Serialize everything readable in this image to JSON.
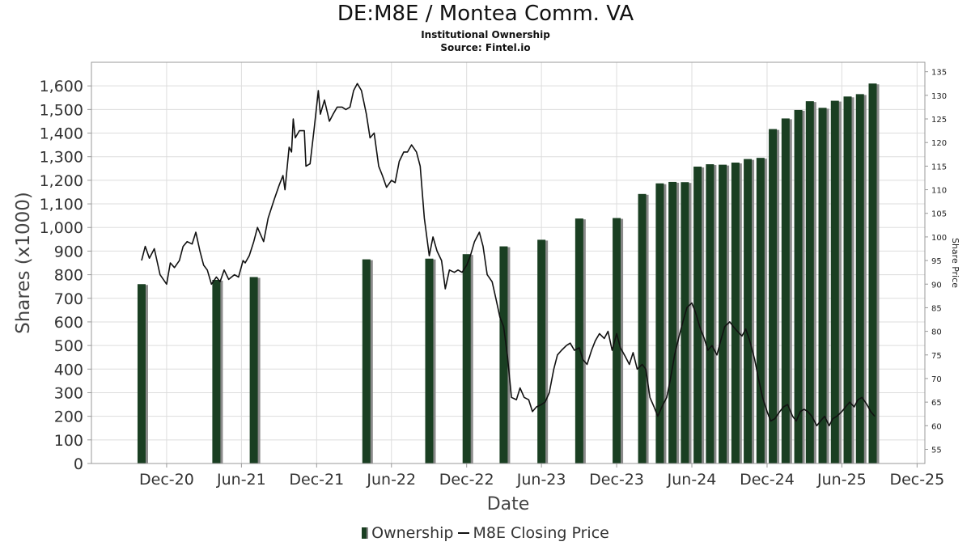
{
  "header": {
    "title": "DE:M8E / Montea Comm. VA",
    "subtitle": "Institutional Ownership",
    "source": "Source: Fintel.io"
  },
  "legend": {
    "ownership_label": "Ownership",
    "price_label": "M8E Closing Price"
  },
  "colors": {
    "bar": "#1a3f22",
    "bar_shadow": "#8a8a8a",
    "line": "#111111",
    "grid": "#dddddd"
  },
  "chart_data": {
    "type": "bar",
    "xlabel": "Date",
    "ylabel": "Shares (x1000)",
    "y2label": "Share Price",
    "ylim": [
      0,
      1700
    ],
    "y2lim": [
      52,
      137
    ],
    "y_ticks": [
      "0",
      "100",
      "200",
      "300",
      "400",
      "500",
      "600",
      "700",
      "800",
      "900",
      "1,000",
      "1,100",
      "1,200",
      "1,300",
      "1,400",
      "1,500",
      "1,600"
    ],
    "y2_ticks": [
      "55",
      "60",
      "65",
      "70",
      "75",
      "80",
      "85",
      "90",
      "95",
      "100",
      "105",
      "110",
      "115",
      "120",
      "125",
      "130",
      "135"
    ],
    "x_ticks": [
      {
        "label": "Dec-20",
        "date": "2020-12-01"
      },
      {
        "label": "Jun-21",
        "date": "2021-06-01"
      },
      {
        "label": "Dec-21",
        "date": "2021-12-01"
      },
      {
        "label": "Jun-22",
        "date": "2022-06-01"
      },
      {
        "label": "Dec-22",
        "date": "2022-12-01"
      },
      {
        "label": "Jun-23",
        "date": "2023-06-01"
      },
      {
        "label": "Dec-23",
        "date": "2023-12-01"
      },
      {
        "label": "Jun-24",
        "date": "2024-06-01"
      },
      {
        "label": "Dec-24",
        "date": "2024-12-01"
      },
      {
        "label": "Jun-25",
        "date": "2025-06-01"
      },
      {
        "label": "Dec-25",
        "date": "2025-12-01"
      }
    ],
    "grid": true,
    "legend_position": "bottom",
    "series": [
      {
        "name": "Ownership",
        "kind": "bar",
        "points": [
          [
            "2020-10-01",
            760
          ],
          [
            "2021-04-01",
            778
          ],
          [
            "2021-07-01",
            790
          ],
          [
            "2022-04-01",
            865
          ],
          [
            "2022-09-01",
            868
          ],
          [
            "2022-12-01",
            887
          ],
          [
            "2023-03-01",
            920
          ],
          [
            "2023-06-01",
            948
          ],
          [
            "2023-09-01",
            1038
          ],
          [
            "2023-12-01",
            1040
          ],
          [
            "2024-02-01",
            1142
          ],
          [
            "2024-03-15",
            1187
          ],
          [
            "2024-04-15",
            1193
          ],
          [
            "2024-05-15",
            1192
          ],
          [
            "2024-06-15",
            1258
          ],
          [
            "2024-07-15",
            1268
          ],
          [
            "2024-08-15",
            1266
          ],
          [
            "2024-09-15",
            1275
          ],
          [
            "2024-10-15",
            1290
          ],
          [
            "2024-11-15",
            1295
          ],
          [
            "2024-12-15",
            1417
          ],
          [
            "2025-01-15",
            1462
          ],
          [
            "2025-02-15",
            1498
          ],
          [
            "2025-03-15",
            1535
          ],
          [
            "2025-04-15",
            1507
          ],
          [
            "2025-05-15",
            1537
          ],
          [
            "2025-06-15",
            1555
          ],
          [
            "2025-07-15",
            1565
          ],
          [
            "2025-08-15",
            1610
          ]
        ]
      },
      {
        "name": "M8E Closing Price",
        "kind": "line",
        "points": [
          [
            "2020-10-01",
            95
          ],
          [
            "2020-10-10",
            98
          ],
          [
            "2020-10-20",
            95.5
          ],
          [
            "2020-11-01",
            97.5
          ],
          [
            "2020-11-15",
            92
          ],
          [
            "2020-12-01",
            90
          ],
          [
            "2020-12-10",
            94.5
          ],
          [
            "2020-12-20",
            93.5
          ],
          [
            "2021-01-01",
            95
          ],
          [
            "2021-01-10",
            98
          ],
          [
            "2021-01-20",
            99
          ],
          [
            "2021-02-01",
            98.5
          ],
          [
            "2021-02-10",
            101
          ],
          [
            "2021-02-20",
            97
          ],
          [
            "2021-03-01",
            94
          ],
          [
            "2021-03-10",
            93
          ],
          [
            "2021-03-20",
            90
          ],
          [
            "2021-04-01",
            91.5
          ],
          [
            "2021-04-10",
            90.5
          ],
          [
            "2021-04-20",
            93
          ],
          [
            "2021-05-01",
            91
          ],
          [
            "2021-05-15",
            92
          ],
          [
            "2021-05-25",
            91.5
          ],
          [
            "2021-06-05",
            95
          ],
          [
            "2021-06-10",
            94.5
          ],
          [
            "2021-06-20",
            96
          ],
          [
            "2021-07-01",
            99
          ],
          [
            "2021-07-10",
            102
          ],
          [
            "2021-07-25",
            99
          ],
          [
            "2021-08-05",
            104
          ],
          [
            "2021-08-20",
            108
          ],
          [
            "2021-09-01",
            111
          ],
          [
            "2021-09-10",
            113
          ],
          [
            "2021-09-15",
            110
          ],
          [
            "2021-09-25",
            119
          ],
          [
            "2021-10-01",
            118
          ],
          [
            "2021-10-05",
            125
          ],
          [
            "2021-10-10",
            121
          ],
          [
            "2021-10-20",
            122.5
          ],
          [
            "2021-11-01",
            122.5
          ],
          [
            "2021-11-05",
            115
          ],
          [
            "2021-11-15",
            115.5
          ],
          [
            "2021-11-25",
            123
          ],
          [
            "2021-12-05",
            131
          ],
          [
            "2021-12-10",
            126
          ],
          [
            "2021-12-20",
            129
          ],
          [
            "2022-01-01",
            124.5
          ],
          [
            "2022-01-10",
            126
          ],
          [
            "2022-01-20",
            127.5
          ],
          [
            "2022-02-01",
            127.5
          ],
          [
            "2022-02-10",
            127
          ],
          [
            "2022-02-20",
            127.5
          ],
          [
            "2022-03-01",
            131
          ],
          [
            "2022-03-10",
            132.5
          ],
          [
            "2022-03-20",
            131
          ],
          [
            "2022-04-01",
            126
          ],
          [
            "2022-04-10",
            121
          ],
          [
            "2022-04-20",
            122
          ],
          [
            "2022-05-01",
            115
          ],
          [
            "2022-05-10",
            113
          ],
          [
            "2022-05-20",
            110.5
          ],
          [
            "2022-06-01",
            112
          ],
          [
            "2022-06-10",
            111.5
          ],
          [
            "2022-06-20",
            116
          ],
          [
            "2022-07-01",
            118
          ],
          [
            "2022-07-10",
            118
          ],
          [
            "2022-07-20",
            119.5
          ],
          [
            "2022-08-01",
            118
          ],
          [
            "2022-08-10",
            115
          ],
          [
            "2022-08-20",
            104
          ],
          [
            "2022-09-01",
            96
          ],
          [
            "2022-09-10",
            100
          ],
          [
            "2022-09-20",
            97
          ],
          [
            "2022-10-01",
            95
          ],
          [
            "2022-10-10",
            89
          ],
          [
            "2022-10-20",
            93
          ],
          [
            "2022-11-01",
            92.5
          ],
          [
            "2022-11-10",
            93
          ],
          [
            "2022-11-20",
            92.5
          ],
          [
            "2022-12-01",
            94
          ],
          [
            "2022-12-10",
            96
          ],
          [
            "2022-12-20",
            99
          ],
          [
            "2023-01-01",
            101
          ],
          [
            "2023-01-10",
            98
          ],
          [
            "2023-01-20",
            92
          ],
          [
            "2023-02-01",
            90.5
          ],
          [
            "2023-02-10",
            87
          ],
          [
            "2023-02-20",
            83
          ],
          [
            "2023-03-01",
            81
          ],
          [
            "2023-03-10",
            75
          ],
          [
            "2023-03-20",
            66
          ],
          [
            "2023-04-01",
            65.5
          ],
          [
            "2023-04-10",
            68
          ],
          [
            "2023-04-20",
            66
          ],
          [
            "2023-05-01",
            65.5
          ],
          [
            "2023-05-10",
            63
          ],
          [
            "2023-05-20",
            64
          ],
          [
            "2023-06-01",
            64.5
          ],
          [
            "2023-06-10",
            65
          ],
          [
            "2023-06-20",
            67
          ],
          [
            "2023-07-01",
            72
          ],
          [
            "2023-07-10",
            75
          ],
          [
            "2023-07-20",
            76
          ],
          [
            "2023-08-01",
            77
          ],
          [
            "2023-08-10",
            77.5
          ],
          [
            "2023-08-20",
            76
          ],
          [
            "2023-09-01",
            76.5
          ],
          [
            "2023-09-10",
            74
          ],
          [
            "2023-09-20",
            73
          ],
          [
            "2023-10-01",
            76
          ],
          [
            "2023-10-10",
            78
          ],
          [
            "2023-10-20",
            79.5
          ],
          [
            "2023-11-01",
            78.5
          ],
          [
            "2023-11-10",
            80
          ],
          [
            "2023-11-20",
            76
          ],
          [
            "2023-12-01",
            79.5
          ],
          [
            "2023-12-10",
            76.5
          ],
          [
            "2023-12-20",
            75
          ],
          [
            "2024-01-01",
            73
          ],
          [
            "2024-01-10",
            75.5
          ],
          [
            "2024-01-20",
            72
          ],
          [
            "2024-02-01",
            73
          ],
          [
            "2024-02-10",
            72
          ],
          [
            "2024-02-20",
            66
          ],
          [
            "2024-03-01",
            64
          ],
          [
            "2024-03-10",
            62
          ],
          [
            "2024-03-20",
            64
          ],
          [
            "2024-04-01",
            66
          ],
          [
            "2024-04-10",
            70
          ],
          [
            "2024-04-20",
            75
          ],
          [
            "2024-05-01",
            79
          ],
          [
            "2024-05-10",
            82
          ],
          [
            "2024-05-20",
            85
          ],
          [
            "2024-06-01",
            86
          ],
          [
            "2024-06-10",
            84
          ],
          [
            "2024-06-20",
            81
          ],
          [
            "2024-07-01",
            78.5
          ],
          [
            "2024-07-10",
            76
          ],
          [
            "2024-07-20",
            77
          ],
          [
            "2024-08-01",
            75
          ],
          [
            "2024-08-10",
            78
          ],
          [
            "2024-08-20",
            81
          ],
          [
            "2024-09-01",
            82
          ],
          [
            "2024-09-10",
            81
          ],
          [
            "2024-09-20",
            80
          ],
          [
            "2024-10-01",
            79
          ],
          [
            "2024-10-10",
            80.5
          ],
          [
            "2024-10-20",
            78
          ],
          [
            "2024-11-01",
            74
          ],
          [
            "2024-11-10",
            70
          ],
          [
            "2024-11-20",
            66
          ],
          [
            "2024-12-01",
            63
          ],
          [
            "2024-12-10",
            61
          ],
          [
            "2024-12-20",
            61.5
          ],
          [
            "2025-01-01",
            63
          ],
          [
            "2025-01-10",
            64
          ],
          [
            "2025-01-20",
            64.5
          ],
          [
            "2025-02-01",
            62
          ],
          [
            "2025-02-10",
            61
          ],
          [
            "2025-02-20",
            63
          ],
          [
            "2025-03-01",
            63.5
          ],
          [
            "2025-03-10",
            63
          ],
          [
            "2025-03-20",
            62
          ],
          [
            "2025-04-01",
            60
          ],
          [
            "2025-04-10",
            61
          ],
          [
            "2025-04-20",
            62
          ],
          [
            "2025-05-01",
            60
          ],
          [
            "2025-05-10",
            61.5
          ],
          [
            "2025-05-20",
            62
          ],
          [
            "2025-06-01",
            63
          ],
          [
            "2025-06-10",
            64
          ],
          [
            "2025-06-20",
            65
          ],
          [
            "2025-07-01",
            64
          ],
          [
            "2025-07-10",
            65.5
          ],
          [
            "2025-07-20",
            66
          ],
          [
            "2025-08-01",
            64.5
          ],
          [
            "2025-08-10",
            63
          ],
          [
            "2025-08-20",
            62
          ]
        ]
      }
    ]
  }
}
